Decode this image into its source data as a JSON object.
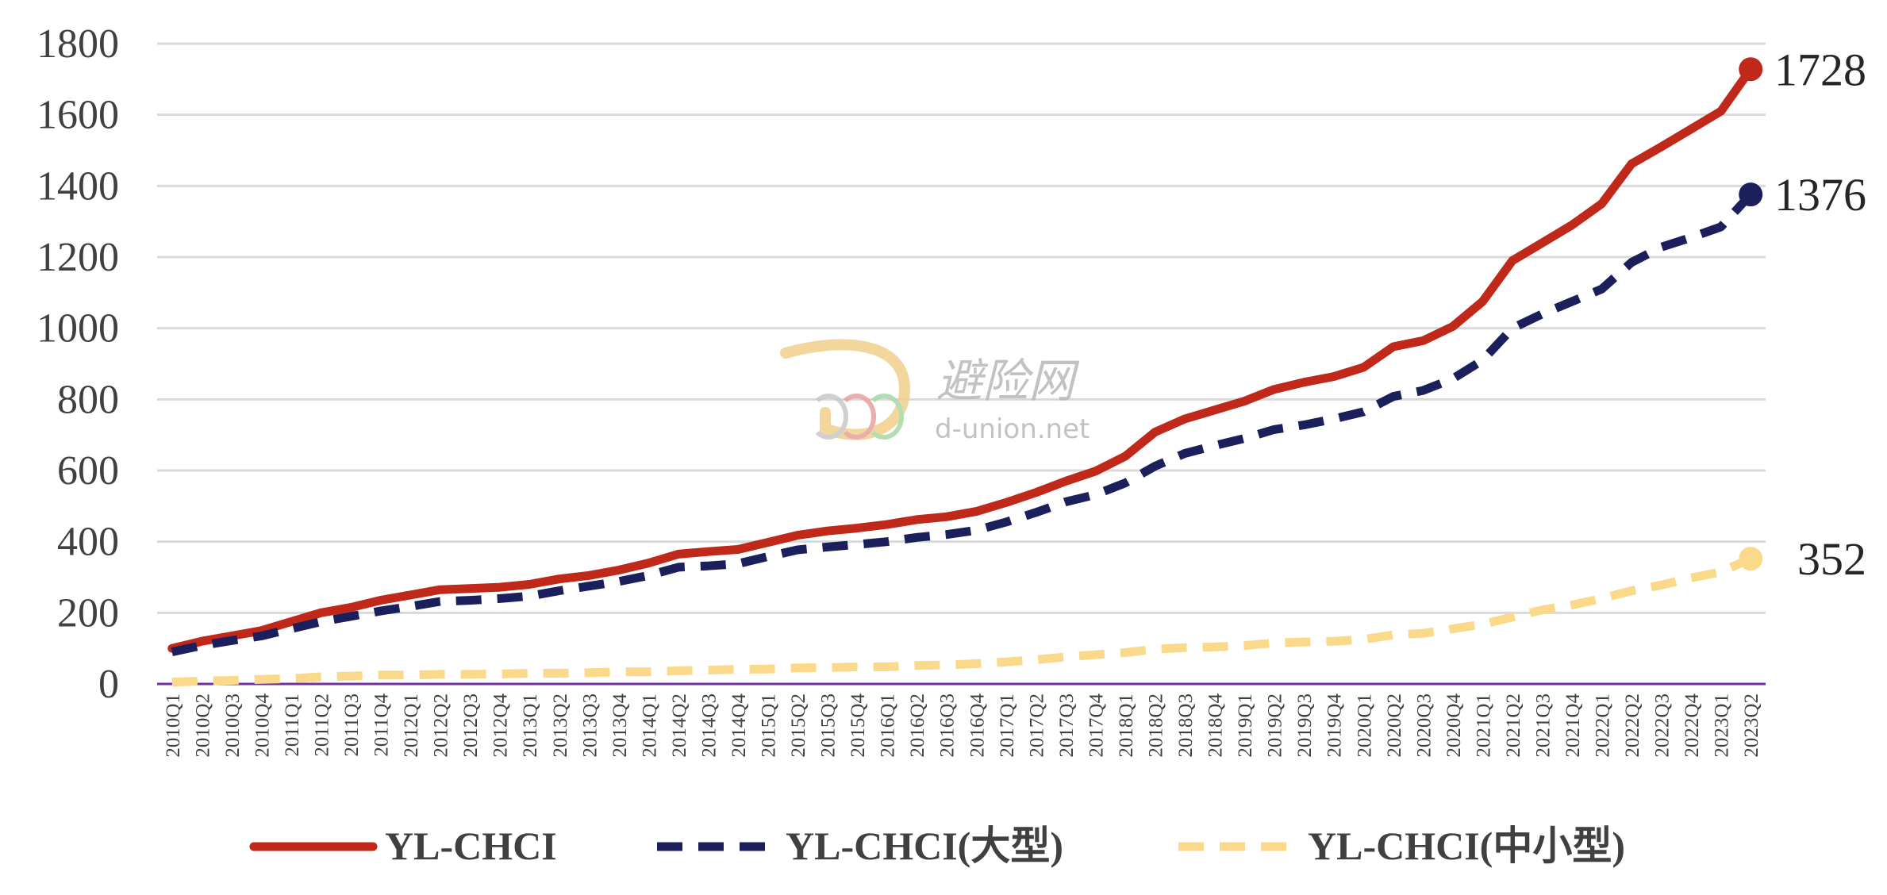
{
  "chart_data": {
    "type": "line",
    "title": "",
    "xlabel": "",
    "ylabel": "",
    "ylim": [
      0,
      1800
    ],
    "yticks": [
      0,
      200,
      400,
      600,
      800,
      1000,
      1200,
      1400,
      1600,
      1800
    ],
    "grid": true,
    "legend_position": "bottom",
    "categories": [
      "2010Q1",
      "2010Q2",
      "2010Q3",
      "2010Q4",
      "2011Q1",
      "2011Q2",
      "2011Q3",
      "2011Q4",
      "2012Q1",
      "2012Q2",
      "2012Q3",
      "2012Q4",
      "2013Q1",
      "2013Q2",
      "2013Q3",
      "2013Q4",
      "2014Q1",
      "2014Q2",
      "2014Q3",
      "2014Q4",
      "2015Q1",
      "2015Q2",
      "2015Q3",
      "2015Q4",
      "2016Q1",
      "2016Q2",
      "2016Q3",
      "2016Q4",
      "2017Q1",
      "2017Q2",
      "2017Q3",
      "2017Q4",
      "2018Q1",
      "2018Q2",
      "2018Q3",
      "2018Q4",
      "2019Q1",
      "2019Q2",
      "2019Q3",
      "2019Q4",
      "2020Q1",
      "2020Q2",
      "2020Q3",
      "2020Q4",
      "2021Q1",
      "2021Q2",
      "2021Q3",
      "2021Q4",
      "2022Q1",
      "2022Q2",
      "2022Q3",
      "2022Q4",
      "2023Q1",
      "2023Q2"
    ],
    "series": [
      {
        "name": "YL-CHCI",
        "color": "#C0281A",
        "style": "solid",
        "end_label": "1728",
        "values": [
          100,
          120,
          135,
          150,
          175,
          200,
          215,
          235,
          250,
          265,
          268,
          272,
          280,
          295,
          305,
          320,
          340,
          365,
          372,
          378,
          398,
          418,
          430,
          438,
          448,
          462,
          470,
          485,
          510,
          538,
          570,
          598,
          640,
          708,
          745,
          770,
          795,
          828,
          848,
          864,
          890,
          948,
          965,
          1005,
          1075,
          1190,
          1240,
          1290,
          1350,
          1462,
          1510,
          1560,
          1610,
          1728
        ]
      },
      {
        "name": "YL-CHCI(大型)",
        "color": "#1B1F5C",
        "style": "dashed",
        "end_label": "1376",
        "values": [
          90,
          108,
          122,
          135,
          155,
          175,
          190,
          205,
          218,
          232,
          235,
          240,
          247,
          262,
          275,
          288,
          305,
          328,
          332,
          338,
          358,
          377,
          385,
          392,
          400,
          412,
          420,
          432,
          455,
          482,
          512,
          532,
          565,
          612,
          648,
          670,
          690,
          715,
          728,
          745,
          765,
          808,
          825,
          858,
          910,
          1000,
          1040,
          1075,
          1110,
          1185,
          1228,
          1255,
          1285,
          1376
        ]
      },
      {
        "name": "YL-CHCI(中小型)",
        "color": "#FBD98A",
        "style": "dashed",
        "end_label": "352",
        "values": [
          5,
          8,
          10,
          13,
          15,
          20,
          22,
          25,
          25,
          27,
          27,
          28,
          30,
          30,
          32,
          34,
          34,
          37,
          39,
          41,
          42,
          45,
          46,
          48,
          48,
          52,
          53,
          57,
          62,
          68,
          76,
          82,
          88,
          98,
          102,
          104,
          108,
          115,
          118,
          120,
          125,
          138,
          142,
          155,
          168,
          188,
          208,
          222,
          240,
          262,
          278,
          298,
          315,
          352
        ]
      }
    ]
  },
  "watermark": {
    "brand_cn": "避险网",
    "url": "d-union.net"
  }
}
